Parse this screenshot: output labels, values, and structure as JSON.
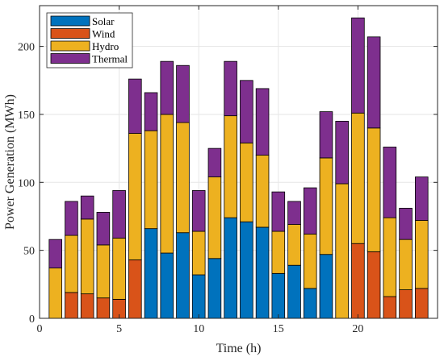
{
  "chart_data": {
    "type": "bar",
    "stacked": true,
    "xlabel": "Time (h)",
    "ylabel": "Power Generation (MWh)",
    "xlim": [
      0,
      25
    ],
    "ylim": [
      0,
      230
    ],
    "xticks": [
      0,
      5,
      10,
      15,
      20
    ],
    "yticks": [
      0,
      50,
      100,
      150,
      200
    ],
    "grid": true,
    "legend_position": "top-left",
    "x": [
      1,
      2,
      3,
      4,
      5,
      6,
      7,
      8,
      9,
      10,
      11,
      12,
      13,
      14,
      15,
      16,
      17,
      18,
      19,
      20,
      21,
      22,
      23,
      24
    ],
    "series": [
      {
        "name": "Solar",
        "color": "#0072BD",
        "values": [
          0,
          0,
          0,
          0,
          0,
          0,
          66,
          48,
          63,
          32,
          44,
          74,
          71,
          67,
          33,
          39,
          22,
          47,
          0,
          0,
          0,
          0,
          0,
          0
        ]
      },
      {
        "name": "Wind",
        "color": "#D95319",
        "values": [
          0,
          19,
          18,
          15,
          14,
          43,
          0,
          0,
          0,
          0,
          0,
          0,
          0,
          0,
          0,
          0,
          0,
          0,
          0,
          55,
          49,
          16,
          21,
          22
        ]
      },
      {
        "name": "Hydro",
        "color": "#EDB120",
        "values": [
          37,
          42,
          55,
          39,
          45,
          93,
          72,
          102,
          81,
          32,
          60,
          75,
          58,
          53,
          31,
          30,
          40,
          71,
          99,
          96,
          91,
          58,
          37,
          50
        ]
      },
      {
        "name": "Thermal",
        "color": "#7E2F8E",
        "values": [
          21,
          25,
          17,
          24,
          35,
          40,
          28,
          39,
          42,
          30,
          21,
          40,
          46,
          49,
          29,
          17,
          34,
          34,
          46,
          70,
          67,
          52,
          23,
          32
        ]
      }
    ]
  }
}
